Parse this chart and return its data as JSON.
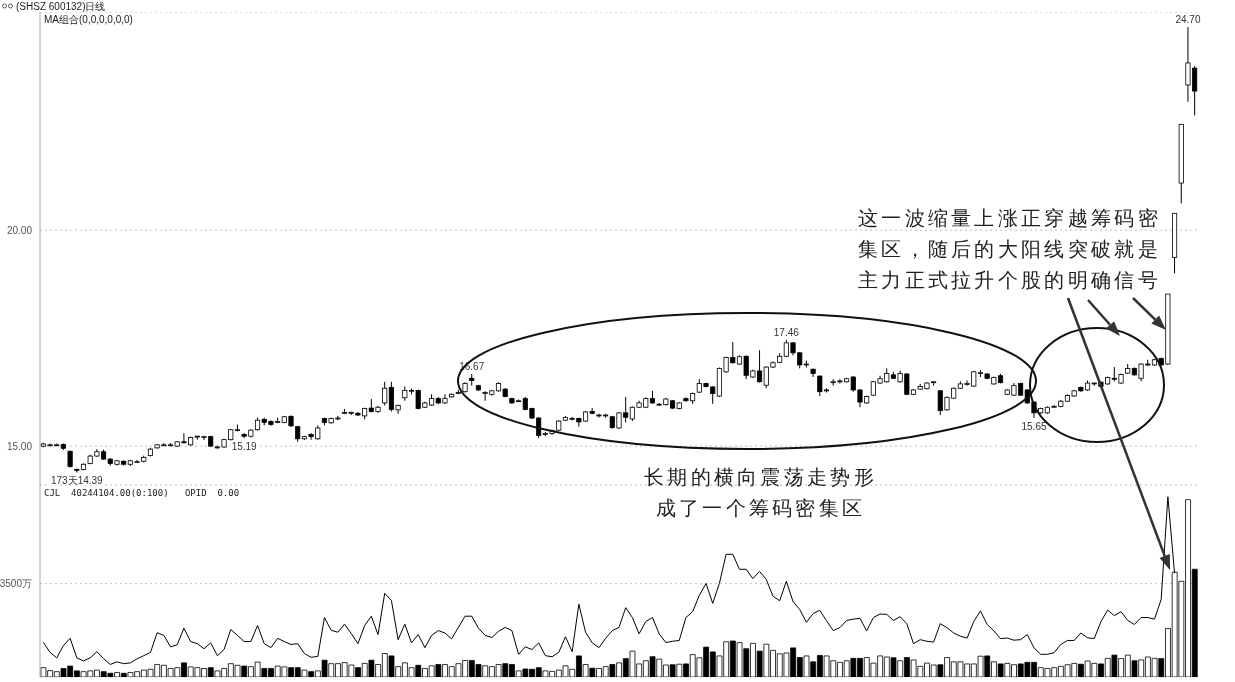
{
  "chart_data": [
    {
      "type": "candlestick",
      "title": "(SHSZ 600132)日线",
      "subtitle": "MA组合(0,0,0,0,0,0)",
      "color": "#000000",
      "grid": "y",
      "ylim": [
        14.1,
        25.05
      ],
      "yticks": [
        {
          "value": 15,
          "label": "15.00"
        },
        {
          "value": 20,
          "label": "20.00"
        }
      ],
      "categories": [
        null,
        null,
        null,
        null,
        null,
        null,
        null,
        null,
        null,
        null,
        null,
        null,
        null,
        null,
        null,
        null,
        null,
        null,
        null,
        null,
        null,
        null,
        null,
        null,
        null,
        null,
        null,
        null,
        null,
        null,
        null,
        null,
        null,
        null,
        null,
        null,
        null,
        null,
        null,
        null,
        null,
        null,
        null,
        null,
        null,
        null,
        null,
        null,
        null,
        null,
        null,
        null,
        null,
        null,
        null,
        null,
        null,
        null,
        null,
        null,
        null,
        null,
        null,
        null,
        null,
        null,
        null,
        null,
        null,
        null,
        null,
        null,
        null,
        null,
        null,
        null,
        null,
        null,
        null,
        null,
        null,
        null,
        null,
        null,
        null,
        null,
        null,
        null,
        null,
        null,
        null,
        null,
        null,
        null,
        null,
        null,
        null,
        null,
        null,
        null,
        null,
        null,
        null,
        null,
        null,
        null,
        null,
        null,
        null,
        null,
        null,
        null,
        null,
        null,
        null,
        null,
        null,
        null,
        null,
        null,
        null,
        null,
        null,
        null,
        null,
        null,
        null,
        null,
        null,
        null,
        null,
        null,
        null,
        null,
        null,
        null,
        null,
        null,
        null,
        null,
        null,
        null,
        null,
        null,
        null,
        null,
        null,
        null,
        null,
        null,
        null,
        null,
        null,
        null,
        null,
        null,
        null,
        null,
        null,
        null,
        null,
        null,
        null,
        null,
        null,
        null,
        null,
        null,
        null,
        null,
        null,
        null,
        null
      ],
      "ohlc": [
        [
          15.0,
          15.08,
          14.97,
          15.05
        ],
        [
          15.03,
          15.06,
          15.0,
          15.03
        ],
        [
          15.03,
          15.06,
          15.0,
          15.03
        ],
        [
          15.04,
          15.06,
          14.91,
          14.95
        ],
        [
          14.88,
          14.9,
          14.5,
          14.53
        ],
        [
          14.46,
          14.48,
          14.39,
          14.45
        ],
        [
          14.46,
          14.6,
          14.44,
          14.58
        ],
        [
          14.6,
          14.8,
          14.58,
          14.77
        ],
        [
          14.77,
          14.93,
          14.75,
          14.87
        ],
        [
          14.87,
          14.92,
          14.68,
          14.7
        ],
        [
          14.7,
          14.72,
          14.55,
          14.6
        ],
        [
          14.58,
          14.68,
          14.55,
          14.66
        ],
        [
          14.65,
          14.67,
          14.55,
          14.58
        ],
        [
          14.58,
          14.68,
          14.54,
          14.66
        ],
        [
          14.64,
          14.68,
          14.62,
          14.64
        ],
        [
          14.65,
          14.78,
          14.62,
          14.74
        ],
        [
          14.78,
          14.96,
          14.76,
          14.93
        ],
        [
          14.96,
          15.05,
          14.94,
          15.03
        ],
        [
          15.03,
          15.07,
          15.0,
          15.03
        ],
        [
          15.03,
          15.07,
          15.0,
          15.03
        ],
        [
          15.0,
          15.12,
          14.98,
          15.1
        ],
        [
          15.1,
          15.3,
          15.06,
          15.08
        ],
        [
          15.03,
          15.22,
          15.01,
          15.2
        ],
        [
          15.23,
          15.24,
          15.15,
          15.23
        ],
        [
          15.22,
          15.23,
          15.14,
          15.22
        ],
        [
          15.22,
          15.24,
          14.98,
          15.0
        ],
        [
          14.98,
          15.01,
          14.94,
          14.98
        ],
        [
          14.98,
          15.17,
          14.96,
          15.15
        ],
        [
          15.15,
          15.4,
          15.13,
          15.38
        ],
        [
          15.38,
          15.5,
          15.34,
          15.38
        ],
        [
          15.27,
          15.3,
          15.19,
          15.23
        ],
        [
          15.23,
          15.39,
          15.2,
          15.37
        ],
        [
          15.38,
          15.66,
          15.36,
          15.6
        ],
        [
          15.62,
          15.66,
          15.48,
          15.55
        ],
        [
          15.57,
          15.6,
          15.47,
          15.5
        ],
        [
          15.57,
          15.66,
          15.53,
          15.57
        ],
        [
          15.55,
          15.7,
          15.53,
          15.68
        ],
        [
          15.69,
          15.71,
          15.44,
          15.47
        ],
        [
          15.45,
          15.47,
          15.1,
          15.17
        ],
        [
          15.17,
          15.24,
          15.14,
          15.22
        ],
        [
          15.27,
          15.3,
          15.15,
          15.22
        ],
        [
          15.17,
          15.48,
          15.15,
          15.42
        ],
        [
          15.64,
          15.66,
          15.48,
          15.55
        ],
        [
          15.54,
          15.66,
          15.52,
          15.64
        ],
        [
          15.65,
          15.7,
          15.6,
          15.65
        ],
        [
          15.78,
          15.86,
          15.74,
          15.78
        ],
        [
          15.78,
          15.8,
          15.72,
          15.78
        ],
        [
          15.76,
          15.79,
          15.7,
          15.72
        ],
        [
          15.7,
          15.89,
          15.62,
          15.87
        ],
        [
          15.88,
          16.09,
          15.78,
          15.8
        ],
        [
          15.8,
          15.93,
          15.77,
          15.9
        ],
        [
          16.0,
          16.49,
          15.94,
          16.34
        ],
        [
          16.36,
          16.49,
          15.8,
          15.85
        ],
        [
          15.84,
          15.96,
          15.75,
          15.94
        ],
        [
          16.12,
          16.38,
          16.05,
          16.29
        ],
        [
          16.29,
          16.33,
          16.2,
          16.29
        ],
        [
          16.29,
          16.31,
          15.85,
          15.87
        ],
        [
          15.9,
          16.03,
          15.88,
          16.0
        ],
        [
          15.95,
          16.2,
          15.93,
          16.1
        ],
        [
          16.1,
          16.14,
          15.97,
          16.0
        ],
        [
          16.0,
          16.2,
          15.98,
          16.1
        ],
        [
          16.14,
          16.22,
          16.12,
          16.2
        ],
        [
          16.24,
          16.3,
          16.2,
          16.24
        ],
        [
          16.26,
          16.48,
          16.24,
          16.45
        ],
        [
          16.57,
          16.67,
          16.4,
          16.52
        ],
        [
          16.4,
          16.42,
          16.28,
          16.3
        ],
        [
          16.24,
          16.27,
          16.05,
          16.24
        ],
        [
          16.2,
          16.3,
          16.17,
          16.28
        ],
        [
          16.28,
          16.48,
          16.26,
          16.45
        ],
        [
          16.32,
          16.34,
          16.13,
          16.15
        ],
        [
          16.1,
          16.12,
          15.98,
          16.0
        ],
        [
          16.05,
          16.08,
          16.02,
          16.05
        ],
        [
          16.1,
          16.14,
          15.83,
          15.85
        ],
        [
          15.87,
          15.89,
          15.63,
          15.65
        ],
        [
          15.65,
          15.67,
          15.19,
          15.25
        ],
        [
          15.29,
          15.33,
          15.23,
          15.29
        ],
        [
          15.29,
          15.38,
          15.26,
          15.36
        ],
        [
          15.37,
          15.6,
          15.35,
          15.58
        ],
        [
          15.6,
          15.7,
          15.58,
          15.66
        ],
        [
          15.64,
          15.68,
          15.6,
          15.64
        ],
        [
          15.64,
          15.66,
          15.45,
          15.56
        ],
        [
          15.58,
          15.81,
          15.56,
          15.79
        ],
        [
          15.8,
          15.88,
          15.74,
          15.76
        ],
        [
          15.72,
          15.75,
          15.66,
          15.72
        ],
        [
          15.72,
          15.75,
          15.66,
          15.72
        ],
        [
          15.68,
          15.7,
          15.4,
          15.43
        ],
        [
          15.42,
          15.79,
          15.4,
          15.77
        ],
        [
          15.77,
          16.14,
          15.55,
          15.67
        ],
        [
          15.63,
          15.92,
          15.58,
          15.9
        ],
        [
          15.9,
          16.05,
          15.88,
          16.0
        ],
        [
          15.9,
          16.13,
          15.88,
          16.1
        ],
        [
          16.1,
          16.28,
          15.98,
          16.0
        ],
        [
          15.97,
          16.0,
          15.93,
          15.97
        ],
        [
          15.96,
          16.12,
          15.94,
          16.09
        ],
        [
          16.05,
          16.07,
          15.86,
          15.88
        ],
        [
          15.87,
          16.02,
          15.85,
          16.0
        ],
        [
          16.1,
          16.13,
          16.03,
          16.05
        ],
        [
          16.05,
          16.24,
          15.98,
          16.22
        ],
        [
          16.25,
          16.55,
          16.23,
          16.45
        ],
        [
          16.45,
          16.47,
          16.36,
          16.38
        ],
        [
          16.37,
          16.39,
          15.98,
          16.22
        ],
        [
          16.16,
          16.82,
          16.14,
          16.8
        ],
        [
          16.72,
          17.07,
          16.7,
          17.05
        ],
        [
          17.05,
          17.41,
          16.91,
          16.93
        ],
        [
          16.9,
          17.1,
          16.88,
          17.07
        ],
        [
          17.08,
          17.1,
          16.55,
          16.64
        ],
        [
          16.6,
          16.77,
          16.58,
          16.74
        ],
        [
          16.74,
          17.22,
          16.47,
          16.49
        ],
        [
          16.41,
          16.85,
          16.34,
          16.83
        ],
        [
          16.83,
          16.96,
          16.81,
          16.93
        ],
        [
          16.94,
          17.15,
          16.92,
          17.08
        ],
        [
          17.08,
          17.46,
          17.06,
          17.39
        ],
        [
          17.39,
          17.41,
          17.1,
          17.16
        ],
        [
          17.16,
          17.18,
          16.8,
          16.88
        ],
        [
          16.9,
          16.98,
          16.82,
          16.9
        ],
        [
          16.78,
          16.8,
          16.6,
          16.68
        ],
        [
          16.62,
          16.64,
          16.16,
          16.26
        ],
        [
          16.3,
          16.34,
          16.24,
          16.3
        ],
        [
          16.49,
          16.55,
          16.4,
          16.49
        ],
        [
          16.51,
          16.55,
          16.45,
          16.51
        ],
        [
          16.49,
          16.58,
          16.47,
          16.56
        ],
        [
          16.6,
          16.62,
          16.26,
          16.3
        ],
        [
          16.3,
          16.32,
          15.9,
          16.02
        ],
        [
          16.0,
          16.17,
          15.98,
          16.15
        ],
        [
          16.18,
          16.51,
          16.16,
          16.49
        ],
        [
          16.46,
          16.63,
          16.44,
          16.56
        ],
        [
          16.49,
          16.8,
          16.47,
          16.68
        ],
        [
          16.65,
          16.72,
          16.55,
          16.57
        ],
        [
          16.49,
          16.75,
          16.47,
          16.68
        ],
        [
          16.67,
          16.69,
          16.18,
          16.2
        ],
        [
          16.2,
          16.32,
          16.18,
          16.3
        ],
        [
          16.32,
          16.44,
          16.3,
          16.38
        ],
        [
          16.33,
          16.48,
          16.31,
          16.46
        ],
        [
          16.49,
          16.5,
          16.4,
          16.49
        ],
        [
          16.28,
          16.3,
          15.72,
          15.82
        ],
        [
          15.84,
          16.15,
          15.82,
          16.13
        ],
        [
          16.11,
          16.36,
          16.09,
          16.34
        ],
        [
          16.34,
          16.5,
          16.32,
          16.44
        ],
        [
          16.45,
          16.52,
          16.4,
          16.45
        ],
        [
          16.39,
          16.74,
          16.37,
          16.72
        ],
        [
          16.7,
          16.76,
          16.6,
          16.7
        ],
        [
          16.67,
          16.69,
          16.55,
          16.57
        ],
        [
          16.44,
          16.61,
          16.42,
          16.59
        ],
        [
          16.63,
          16.67,
          16.45,
          16.47
        ],
        [
          16.2,
          16.32,
          16.18,
          16.3
        ],
        [
          16.18,
          16.46,
          16.16,
          16.4
        ],
        [
          16.45,
          16.47,
          16.16,
          16.18
        ],
        [
          16.3,
          16.32,
          15.98,
          16.0
        ],
        [
          16.02,
          16.04,
          15.65,
          15.77
        ],
        [
          15.77,
          15.89,
          15.75,
          15.87
        ],
        [
          15.77,
          15.92,
          15.75,
          15.9
        ],
        [
          15.92,
          15.95,
          15.9,
          15.92
        ],
        [
          15.92,
          16.07,
          15.9,
          16.04
        ],
        [
          16.04,
          16.2,
          16.02,
          16.17
        ],
        [
          16.16,
          16.3,
          16.14,
          16.28
        ],
        [
          16.36,
          16.38,
          16.26,
          16.28
        ],
        [
          16.3,
          16.52,
          16.28,
          16.46
        ],
        [
          16.46,
          16.47,
          16.4,
          16.46
        ],
        [
          16.48,
          16.5,
          16.36,
          16.38
        ],
        [
          16.44,
          16.61,
          16.42,
          16.59
        ],
        [
          16.57,
          16.83,
          16.5,
          16.55
        ],
        [
          16.46,
          16.68,
          16.44,
          16.66
        ],
        [
          16.69,
          16.9,
          16.67,
          16.8
        ],
        [
          16.8,
          16.82,
          16.63,
          16.65
        ],
        [
          16.57,
          16.92,
          16.5,
          16.9
        ],
        [
          16.9,
          17.0,
          16.85,
          16.9
        ],
        [
          16.88,
          17.02,
          16.86,
          17.0
        ],
        [
          17.03,
          17.05,
          16.86,
          16.88
        ],
        [
          16.9,
          18.52,
          16.88,
          18.52
        ],
        [
          19.37,
          20.39,
          19.0,
          20.39
        ],
        [
          21.09,
          22.45,
          20.62,
          22.45
        ],
        [
          23.36,
          24.7,
          22.97,
          23.87
        ],
        [
          23.75,
          23.8,
          22.66,
          23.22
        ]
      ],
      "annotations": [
        {
          "text": "16.67",
          "y": 16.67
        },
        {
          "text": "15.19",
          "y": 15.19
        },
        {
          "text": "17.46",
          "y": 17.46
        },
        {
          "text": "15.65",
          "y": 15.65
        },
        {
          "text": "173天14.39",
          "y": 14.39
        },
        {
          "text": "24.70",
          "y": 24.7
        },
        "这一波缩量上涨正穿越筹码密集区，随后的大阳线突破就是主力正式拉升个股的明确信号",
        "长期的横向震荡走势形成了一个筹码密集区"
      ]
    },
    {
      "type": "bar",
      "title": "CJL  40244104.00(0:100)   OPID  0.00",
      "grid": "y",
      "marker": "none",
      "ylim": [
        0,
        7200
      ],
      "yticks": [
        {
          "value": 3500,
          "label": "3500万"
        }
      ],
      "categories": [
        null,
        null,
        null,
        null,
        null,
        null,
        null,
        null,
        null,
        null,
        null,
        null,
        null,
        null,
        null,
        null,
        null,
        null,
        null,
        null,
        null,
        null,
        null,
        null,
        null,
        null,
        null,
        null,
        null,
        null,
        null,
        null,
        null,
        null,
        null,
        null,
        null,
        null,
        null,
        null,
        null,
        null,
        null,
        null,
        null,
        null,
        null,
        null,
        null,
        null,
        null,
        null,
        null,
        null,
        null,
        null,
        null,
        null,
        null,
        null,
        null,
        null,
        null,
        null,
        null,
        null,
        null,
        null,
        null,
        null,
        null,
        null,
        null,
        null,
        null,
        null,
        null,
        null,
        null,
        null,
        null,
        null,
        null,
        null,
        null,
        null,
        null,
        null,
        null,
        null,
        null,
        null,
        null,
        null,
        null,
        null,
        null,
        null,
        null,
        null,
        null,
        null,
        null,
        null,
        null,
        null,
        null,
        null,
        null,
        null,
        null,
        null,
        null,
        null,
        null,
        null,
        null,
        null,
        null,
        null,
        null,
        null,
        null,
        null,
        null,
        null,
        null,
        null,
        null,
        null,
        null,
        null,
        null,
        null,
        null,
        null,
        null,
        null,
        null,
        null,
        null,
        null,
        null,
        null,
        null,
        null,
        null,
        null,
        null,
        null,
        null,
        null,
        null,
        null,
        null,
        null,
        null,
        null,
        null,
        null,
        null,
        null,
        null,
        null,
        null,
        null,
        null,
        null,
        null,
        null,
        null,
        null,
        null
      ],
      "series": [
        {
          "type": "bar",
          "color": "#000000",
          "colors": [
            "#ffffff",
            "#ffffff",
            "#ffffff",
            "#000000",
            "#000000",
            "#000000",
            "#ffffff",
            "#ffffff",
            "#ffffff",
            "#000000",
            "#000000",
            "#ffffff",
            "#000000",
            "#ffffff",
            "#ffffff",
            "#ffffff",
            "#ffffff",
            "#ffffff",
            "#ffffff",
            "#ffffff",
            "#ffffff",
            "#000000",
            "#ffffff",
            "#ffffff",
            "#ffffff",
            "#000000",
            "#ffffff",
            "#ffffff",
            "#ffffff",
            "#ffffff",
            "#000000",
            "#ffffff",
            "#ffffff",
            "#000000",
            "#000000",
            "#ffffff",
            "#ffffff",
            "#000000",
            "#000000",
            "#ffffff",
            "#000000",
            "#ffffff",
            "#000000",
            "#ffffff",
            "#ffffff",
            "#ffffff",
            "#ffffff",
            "#000000",
            "#ffffff",
            "#000000",
            "#ffffff",
            "#ffffff",
            "#000000",
            "#ffffff",
            "#ffffff",
            "#ffffff",
            "#000000",
            "#ffffff",
            "#ffffff",
            "#000000",
            "#ffffff",
            "#ffffff",
            "#ffffff",
            "#ffffff",
            "#000000",
            "#000000",
            "#ffffff",
            "#ffffff",
            "#ffffff",
            "#000000",
            "#000000",
            "#ffffff",
            "#000000",
            "#000000",
            "#000000",
            "#ffffff",
            "#ffffff",
            "#ffffff",
            "#ffffff",
            "#ffffff",
            "#000000",
            "#ffffff",
            "#000000",
            "#ffffff",
            "#ffffff",
            "#000000",
            "#ffffff",
            "#000000",
            "#ffffff",
            "#ffffff",
            "#ffffff",
            "#000000",
            "#ffffff",
            "#ffffff",
            "#000000",
            "#ffffff",
            "#000000",
            "#ffffff",
            "#ffffff",
            "#000000",
            "#000000",
            "#ffffff",
            "#ffffff",
            "#000000",
            "#ffffff",
            "#000000",
            "#ffffff",
            "#000000",
            "#ffffff",
            "#ffffff",
            "#ffffff",
            "#ffffff",
            "#000000",
            "#000000",
            "#ffffff",
            "#000000",
            "#000000",
            "#ffffff",
            "#ffffff",
            "#ffffff",
            "#ffffff",
            "#000000",
            "#000000",
            "#ffffff",
            "#ffffff",
            "#ffffff",
            "#ffffff",
            "#000000",
            "#ffffff",
            "#000000",
            "#ffffff",
            "#ffffff",
            "#ffffff",
            "#ffffff",
            "#000000",
            "#ffffff",
            "#ffffff",
            "#ffffff",
            "#ffffff",
            "#ffffff",
            "#ffffff",
            "#000000",
            "#ffffff",
            "#000000",
            "#ffffff",
            "#ffffff",
            "#000000",
            "#000000",
            "#000000",
            "#ffffff",
            "#ffffff",
            "#ffffff",
            "#ffffff",
            "#ffffff",
            "#ffffff",
            "#000000",
            "#ffffff",
            "#ffffff",
            "#000000",
            "#ffffff",
            "#000000",
            "#ffffff",
            "#ffffff",
            "#000000",
            "#ffffff",
            "#ffffff",
            "#ffffff",
            "#000000",
            "#ffffff",
            "#ffffff",
            "#ffffff",
            "#ffffff",
            "#000000"
          ],
          "values": [
            350,
            240,
            200,
            320,
            410,
            230,
            200,
            230,
            260,
            200,
            140,
            170,
            140,
            170,
            200,
            260,
            290,
            470,
            440,
            320,
            350,
            530,
            380,
            350,
            320,
            350,
            230,
            320,
            500,
            440,
            410,
            390,
            560,
            320,
            320,
            410,
            380,
            350,
            350,
            260,
            200,
            230,
            630,
            500,
            500,
            540,
            450,
            350,
            510,
            630,
            470,
            880,
            790,
            390,
            530,
            350,
            440,
            320,
            420,
            470,
            470,
            390,
            500,
            620,
            620,
            470,
            420,
            390,
            470,
            500,
            470,
            230,
            300,
            290,
            350,
            230,
            210,
            260,
            420,
            290,
            790,
            470,
            330,
            320,
            390,
            470,
            530,
            690,
            970,
            490,
            610,
            760,
            670,
            450,
            460,
            480,
            490,
            840,
            720,
            1120,
            940,
            790,
            1320,
            1350,
            1290,
            1060,
            1260,
            970,
            1230,
            1000,
            870,
            900,
            1090,
            730,
            790,
            570,
            810,
            790,
            610,
            550,
            610,
            700,
            700,
            730,
            520,
            790,
            750,
            720,
            610,
            730,
            640,
            400,
            520,
            450,
            460,
            730,
            570,
            570,
            490,
            490,
            780,
            790,
            570,
            490,
            510,
            460,
            490,
            550,
            550,
            350,
            320,
            350,
            400,
            460,
            510,
            480,
            600,
            510,
            490,
            700,
            820,
            690,
            820,
            610,
            640,
            750,
            700,
            690,
            1820,
            3930,
            3590,
            6650,
            4040
          ]
        },
        {
          "type": "line",
          "color": "#000000",
          "values": [
            1300,
            920,
            720,
            1180,
            1450,
            720,
            600,
            720,
            950,
            690,
            470,
            570,
            500,
            530,
            680,
            800,
            920,
            1660,
            1560,
            1130,
            1210,
            1830,
            1330,
            1250,
            1060,
            1280,
            800,
            1030,
            1780,
            1560,
            1330,
            1330,
            1930,
            1250,
            1100,
            1450,
            1330,
            1220,
            1250,
            880,
            740,
            770,
            2230,
            1750,
            1680,
            1980,
            1630,
            1250,
            1930,
            2280,
            1590,
            3140,
            2870,
            1400,
            1980,
            1280,
            1590,
            1100,
            1560,
            1740,
            1650,
            1430,
            1860,
            2280,
            2280,
            1830,
            1560,
            1480,
            1710,
            1860,
            1740,
            850,
            1130,
            1030,
            1280,
            800,
            760,
            920,
            1510,
            950,
            2730,
            1680,
            1280,
            1100,
            1450,
            1740,
            1860,
            2600,
            2230,
            1620,
            2080,
            2230,
            1620,
            1290,
            1340,
            1370,
            2230,
            2450,
            3060,
            3510,
            2760,
            3510,
            4600,
            4600,
            4040,
            4040,
            3690,
            3960,
            3660,
            3030,
            2860,
            3590,
            2830,
            2530,
            2050,
            2380,
            2500,
            2110,
            1740,
            1850,
            2120,
            2170,
            2200,
            1730,
            2230,
            2360,
            2350,
            2120,
            2260,
            2000,
            1250,
            1400,
            1340,
            1310,
            2000,
            1850,
            1650,
            1530,
            1460,
            2080,
            2480,
            1970,
            1730,
            1440,
            1460,
            1380,
            1400,
            1590,
            1090,
            850,
            850,
            910,
            1220,
            1370,
            1370,
            1650,
            1470,
            1440,
            2080,
            2510,
            2300,
            2450,
            2120,
            1970,
            2230,
            2230,
            2170,
            2910,
            6760,
            3890,
            null,
            null,
            null
          ]
        }
      ]
    }
  ]
}
